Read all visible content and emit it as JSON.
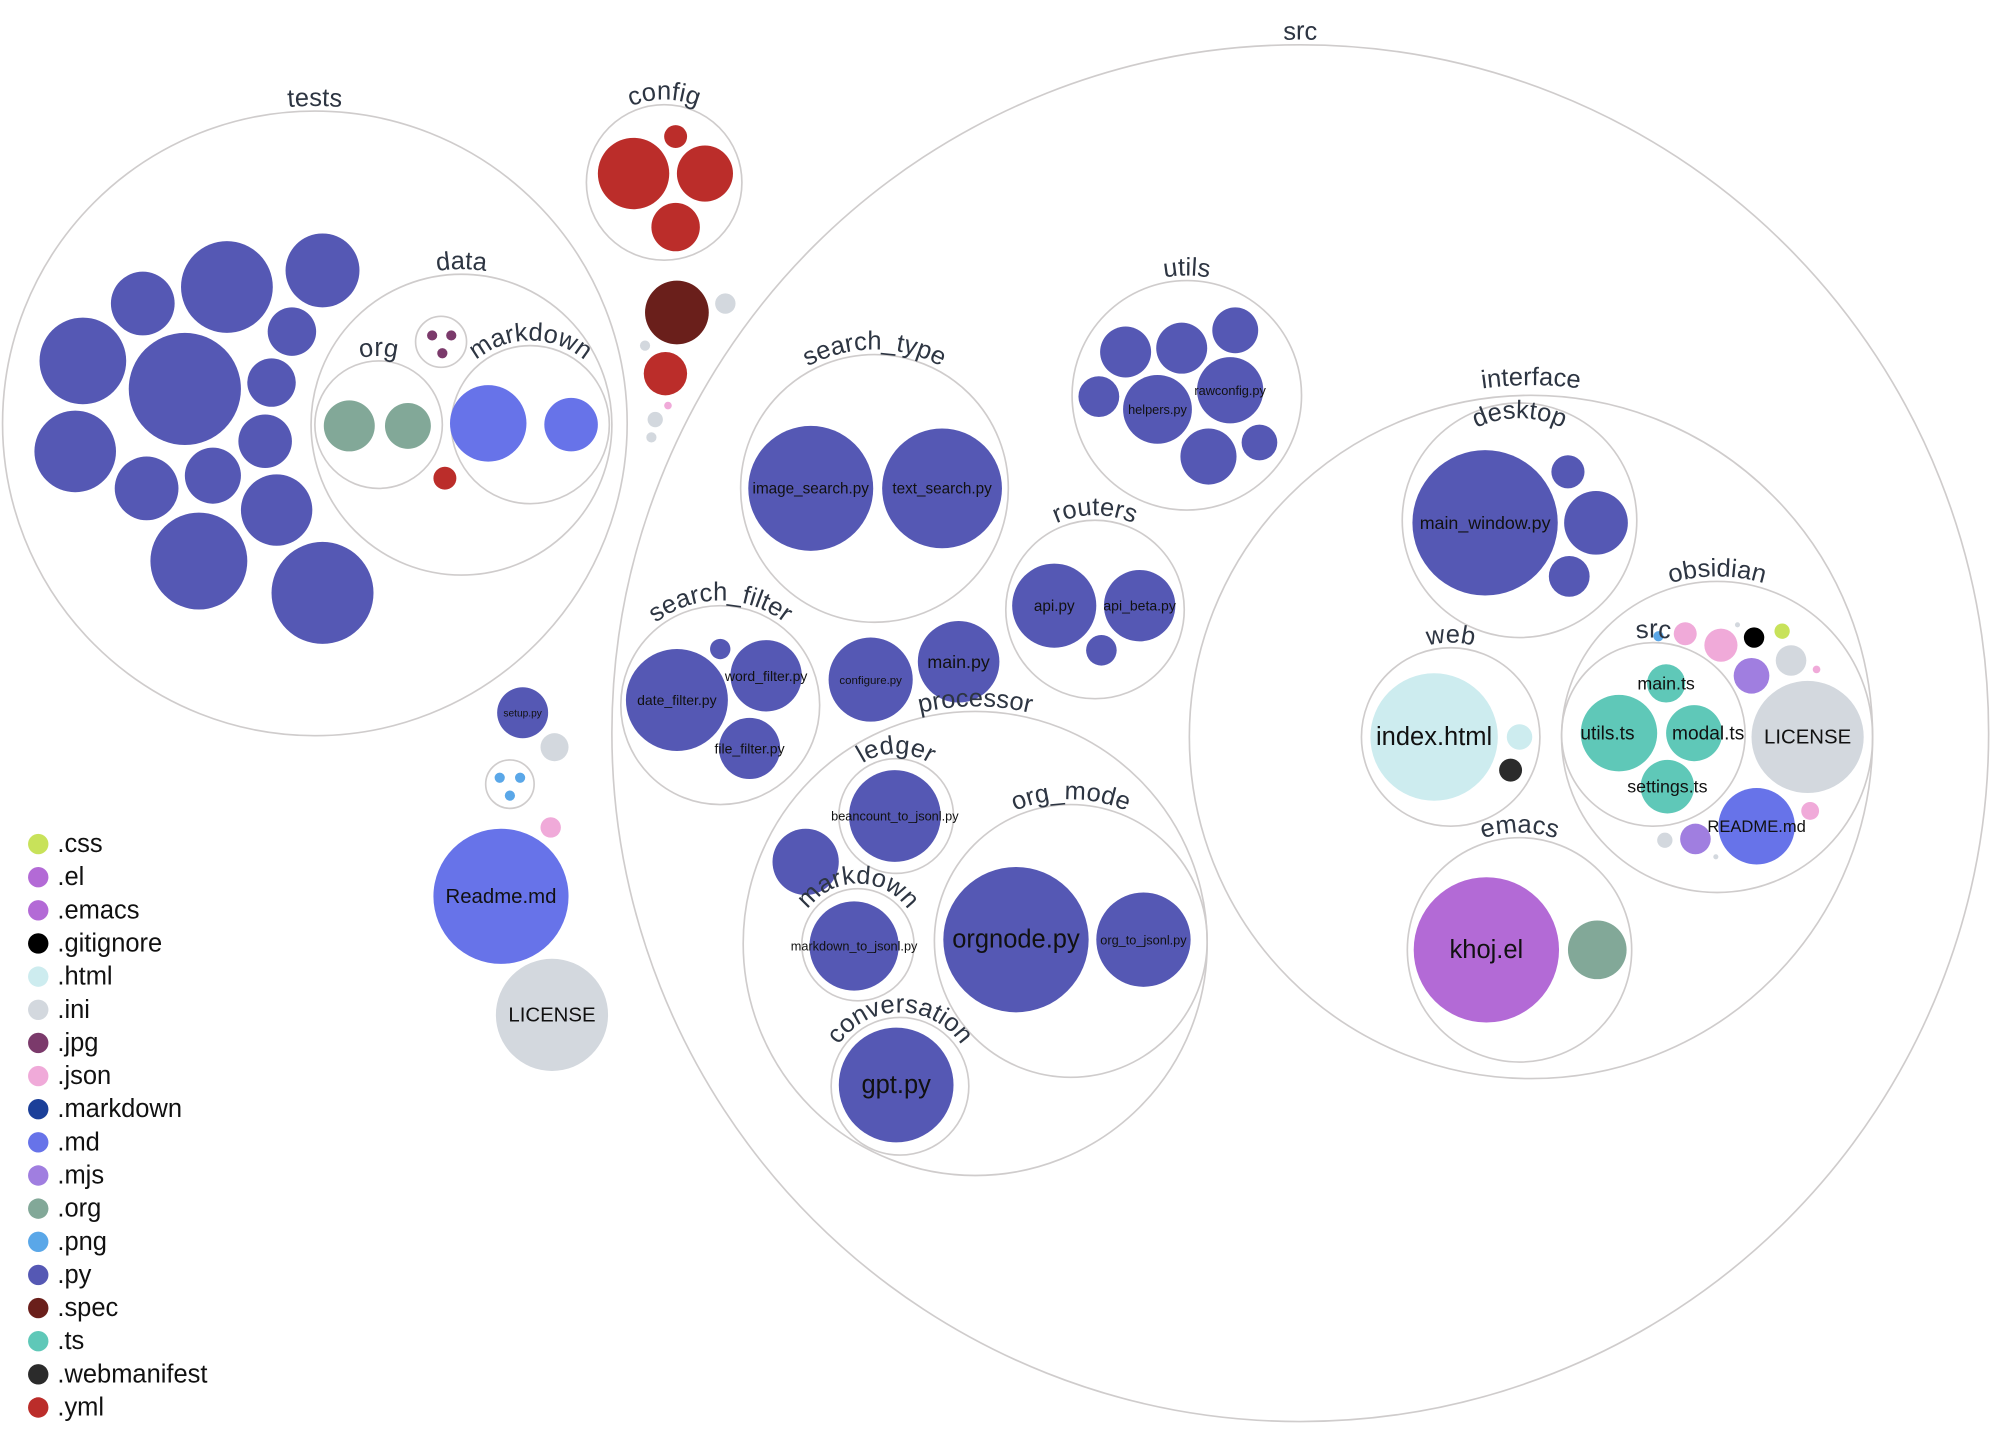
{
  "folders": {
    "src": "src",
    "tests": "tests",
    "tests_data": "data",
    "tests_data_org": "org",
    "tests_data_markdown": "markdown",
    "config": "config",
    "search_type": "search_type",
    "utils": "utils",
    "routers": "routers",
    "search_filter": "search_filter",
    "processor": "processor",
    "ledger": "ledger",
    "processor_markdown": "markdown",
    "org_mode": "org_mode",
    "conversation": "conversation",
    "interface": "interface",
    "desktop": "desktop",
    "web": "web",
    "emacs": "emacs",
    "obsidian": "obsidian",
    "obsidian_src": "src"
  },
  "files": {
    "setup_py": "setup.py",
    "readme_md": "Readme.md",
    "license": "LICENSE",
    "image_search": "image_search.py",
    "text_search": "text_search.py",
    "helpers": "helpers.py",
    "rawconfig": "rawconfig.py",
    "api": "api.py",
    "api_beta": "api_beta.py",
    "date_filter": "date_filter.py",
    "word_filter": "word_filter.py",
    "file_filter": "file_filter.py",
    "configure": "configure.py",
    "main_py": "main.py",
    "beancount": "beancount_to_jsonl.py",
    "markdown_to_jsonl": "markdown_to_jsonl.py",
    "orgnode": "orgnode.py",
    "org_to_jsonl": "org_to_jsonl.py",
    "gpt": "gpt.py",
    "main_window": "main_window.py",
    "index_html": "index.html",
    "khoj_el": "khoj.el",
    "main_ts": "main.ts",
    "utils_ts": "utils.ts",
    "modal_ts": "modal.ts",
    "settings_ts": "settings.ts",
    "obsidian_license": "LICENSE",
    "obsidian_readme": "README.md"
  },
  "legend": [
    {
      "ext": ".css",
      "color": "#c8e25a"
    },
    {
      "ext": ".el",
      "color": "#b36ad6"
    },
    {
      "ext": ".emacs",
      "color": "#b36ad6"
    },
    {
      "ext": ".gitignore",
      "color": "#000000"
    },
    {
      "ext": ".html",
      "color": "#cdecef"
    },
    {
      "ext": ".ini",
      "color": "#d3d8de"
    },
    {
      "ext": ".jpg",
      "color": "#7b3a6b"
    },
    {
      "ext": ".json",
      "color": "#f0aad9"
    },
    {
      "ext": ".markdown",
      "color": "#1b3f99"
    },
    {
      "ext": ".md",
      "color": "#6773e9"
    },
    {
      "ext": ".mjs",
      "color": "#a07ee0"
    },
    {
      "ext": ".org",
      "color": "#82a898"
    },
    {
      "ext": ".png",
      "color": "#5aa7e8"
    },
    {
      "ext": ".py",
      "color": "#5558b4"
    },
    {
      "ext": ".spec",
      "color": "#6a1f1b"
    },
    {
      "ext": ".ts",
      "color": "#5fc8b8"
    },
    {
      "ext": ".webmanifest",
      "color": "#2b2b2b"
    },
    {
      "ext": ".yml",
      "color": "#bb2d2a"
    }
  ]
}
